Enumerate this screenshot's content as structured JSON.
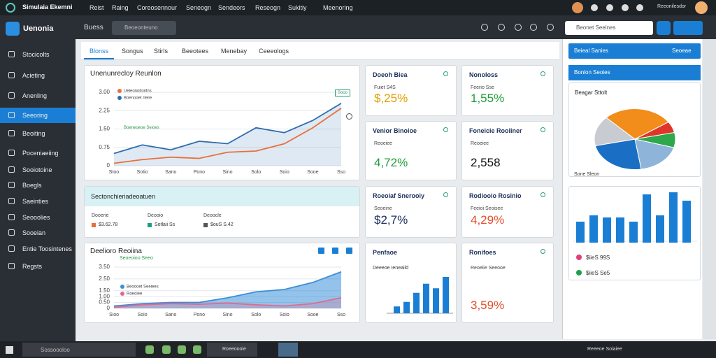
{
  "topbar": {
    "app": "Simulaia Ekemni",
    "menu": [
      "Reist",
      "Raing",
      "Coreosennour",
      "Seneogn",
      "Sendeors",
      "Reseogn",
      "Sukitiy",
      "Meenoring"
    ],
    "user": "Reeonilesdor"
  },
  "sidebar": {
    "title": "Uenonia",
    "active": 3,
    "items": [
      "Stocicolts",
      "Acieting",
      "Anenling",
      "Seeoring",
      "Beoiting",
      "Poceniaeiing",
      "Sooiotoine",
      "Boegls",
      "Saeinties",
      "Seooolies",
      "Sooeian",
      "Entie Toosintenes",
      "Regsts"
    ]
  },
  "toolbar": {
    "title": "Buess",
    "search": "Beoeonteuno",
    "search2": "Beonet Seeines"
  },
  "tabs": [
    "Blonss",
    "Songus",
    "Stirls",
    "Beeotees",
    "Menebay",
    "Ceeeologs"
  ],
  "chart1": {
    "type": "line",
    "title": "Unenunrecloy Reunlon",
    "badge": "Sooo",
    "categories": [
      "Stoo",
      "Sotio",
      "Sano",
      "Pono",
      "Sino",
      "Solo",
      "Soio",
      "Sooe",
      "Sso"
    ],
    "ylim": [
      0,
      3
    ],
    "yticks": [
      0,
      {
        "value": 0.75,
        "label": "0.75"
      },
      {
        "value": 1.5,
        "label": "1.50"
      },
      {
        "value": 2.25,
        "label": "2.25"
      },
      {
        "value": 3,
        "label": "3.00"
      }
    ],
    "series": [
      {
        "name": "Ueieonoitonlns",
        "color": "#e8703a",
        "values": [
          0.1,
          0.25,
          0.35,
          0.3,
          0.55,
          0.6,
          0.9,
          1.55,
          2.35
        ]
      },
      {
        "name": "Boenooet rieiie",
        "color": "#2b6cb0",
        "values": [
          0.5,
          0.85,
          0.65,
          1.0,
          0.9,
          1.55,
          1.35,
          1.85,
          2.55
        ]
      }
    ],
    "note": "Boeneoeoe Seioes"
  },
  "info": {
    "title": "Sectonchieriadeoatuen",
    "columns": [
      {
        "label": "Dooerie",
        "value": "$3.62.78",
        "color": "#e8703a"
      },
      {
        "label": "Deooio",
        "value": "Sotlaii Ss",
        "color": "#1e9e8a"
      },
      {
        "label": "Deoocle",
        "value": "$ouS S.42",
        "color": "#555555"
      }
    ]
  },
  "chart2": {
    "type": "area",
    "title": "Deelioro Reoiina",
    "subtitle": "Seoeoioo Seeo",
    "categories": [
      "Sioo",
      "Soio",
      "Sano",
      "Pono",
      "Sino",
      "Solo",
      "Soio",
      "Sooe",
      "Sso"
    ],
    "ylim": [
      0,
      3.5
    ],
    "yticks": [
      0,
      {
        "value": 0.5,
        "label": "0.50"
      },
      {
        "value": 1,
        "label": "1.00"
      },
      {
        "value": 1.5,
        "label": "1.50"
      },
      {
        "value": 2.5,
        "label": "2.50"
      },
      {
        "value": 3.5,
        "label": "3.50"
      }
    ],
    "series": [
      {
        "name": "Beoooet Seeiees",
        "color": "#3b8fd8",
        "values": [
          0.2,
          0.4,
          0.5,
          0.5,
          0.9,
          1.4,
          1.6,
          2.2,
          3.1
        ]
      },
      {
        "name": "Roeoiee",
        "color": "#e26a8a",
        "values": [
          0.1,
          0.3,
          0.4,
          0.35,
          0.45,
          0.3,
          0.2,
          0.4,
          0.9
        ]
      }
    ]
  },
  "kpis": [
    {
      "title": "Doeoh Biea",
      "sub": "Fuiet S4S",
      "value": "$,25%",
      "color": "#e0a100"
    },
    {
      "title": "Nonoloss",
      "sub": "Feerio Sse",
      "value": "1,55%",
      "color": "#1e9e3a"
    },
    {
      "title": "Venior Binoioe",
      "sub": "Reoeiee",
      "value": "4,72%",
      "color": "#1e9e3a"
    },
    {
      "title": "Foneicie Rooiiner",
      "sub": "Reoeiee",
      "value": "2,558",
      "color": "#111111"
    },
    {
      "title": "Roeoiaf Snerooiy",
      "sub": "Seoeine",
      "value": "$2,7%",
      "color": "#1a2f5a"
    },
    {
      "title": "Rodiooio Rosinio",
      "sub": "Feeioi Seoisee",
      "value": "4,29%",
      "color": "#e0502a"
    },
    {
      "title": "Ronifoes",
      "sub": "Reoeiie Seeooe",
      "value": "3,59%",
      "color": "#e0502a"
    }
  ],
  "bars1": {
    "type": "bar",
    "title": "Penfaoe",
    "subtitle": "Deeeoe Ieneaild",
    "color": "#1a7fd4",
    "values": [
      0.3,
      0.5,
      0.9,
      1.3,
      1.1,
      1.6
    ]
  },
  "right": {
    "header": "Beieal Sanies",
    "header_action": "Seoeae",
    "panel": "Bonlon Seoies",
    "pie_title": "Beagar Sttolt",
    "pie": {
      "type": "pie",
      "values": [
        28,
        6,
        8,
        18,
        24,
        16
      ],
      "colors": [
        "#f28c1a",
        "#e0352a",
        "#2da84a",
        "#8fb4d9",
        "#1a6fc4",
        "#c8ccd2"
      ]
    },
    "label": "Sone Sleon",
    "bars": {
      "type": "bar",
      "color": "#1a7fd4",
      "values": [
        1.0,
        1.3,
        1.2,
        1.2,
        1.0,
        2.3,
        1.3,
        2.4,
        2.0
      ]
    },
    "legend": [
      {
        "name": "$iieS 99S",
        "color": "#e0407a"
      },
      {
        "name": "$iieS Se5",
        "color": "#1ea04a"
      }
    ]
  },
  "taskbar": {
    "search": "Sossoooloo",
    "app": "Roeeoooie",
    "clock": "Reeeoe Soiaiee"
  }
}
